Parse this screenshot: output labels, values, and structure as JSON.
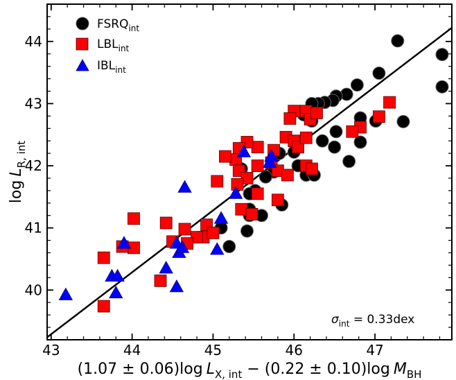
{
  "chart_data": {
    "type": "scatter",
    "xlabel": {
      "prefix": "(1.07 ± 0.06)log",
      "var1": "L",
      "sub1": "X, int",
      "mid": " − (0.22 ± 0.10)log",
      "var2": "M",
      "sub2": "BH"
    },
    "ylabel": {
      "prefix": "log",
      "var": "L",
      "sub": "R, int"
    },
    "xlim": [
      42.95,
      47.95
    ],
    "ylim": [
      39.2,
      44.6
    ],
    "xticks": [
      43,
      44,
      45,
      46,
      47
    ],
    "yticks": [
      40,
      41,
      42,
      43,
      44
    ],
    "legend_position": "top-left",
    "annotation": {
      "symbol": "σ",
      "sub": "int",
      "text": " = 0.33dex"
    },
    "fit_line": {
      "x": [
        42.95,
        47.95
      ],
      "y": [
        39.24,
        44.22
      ]
    },
    "series": [
      {
        "name": "FSRQ",
        "sub": "int",
        "marker": "circle",
        "color": "#000000",
        "points": [
          [
            47.28,
            44.01
          ],
          [
            47.83,
            43.79
          ],
          [
            47.83,
            43.27
          ],
          [
            47.05,
            43.49
          ],
          [
            47.35,
            42.71
          ],
          [
            47.01,
            42.72
          ],
          [
            46.78,
            43.3
          ],
          [
            46.65,
            43.15
          ],
          [
            46.52,
            43.12
          ],
          [
            46.48,
            43.05
          ],
          [
            46.38,
            43.02
          ],
          [
            46.3,
            43.0
          ],
          [
            46.22,
            43.0
          ],
          [
            46.12,
            42.82
          ],
          [
            46.22,
            42.72
          ],
          [
            46.35,
            42.4
          ],
          [
            46.52,
            42.55
          ],
          [
            46.5,
            42.3
          ],
          [
            46.68,
            42.07
          ],
          [
            46.82,
            42.77
          ],
          [
            46.82,
            42.38
          ],
          [
            46.0,
            42.22
          ],
          [
            45.82,
            42.2
          ],
          [
            46.05,
            42.0
          ],
          [
            46.15,
            41.85
          ],
          [
            46.25,
            41.85
          ],
          [
            45.75,
            41.9
          ],
          [
            45.65,
            41.82
          ],
          [
            45.52,
            41.6
          ],
          [
            45.45,
            41.55
          ],
          [
            45.35,
            41.95
          ],
          [
            45.6,
            41.2
          ],
          [
            45.45,
            41.3
          ],
          [
            45.45,
            41.2
          ],
          [
            45.42,
            40.95
          ],
          [
            45.85,
            41.37
          ],
          [
            45.1,
            41.0
          ],
          [
            45.2,
            40.7
          ]
        ]
      },
      {
        "name": "LBL",
        "sub": "int",
        "marker": "square",
        "color": "#ff0000",
        "points": [
          [
            47.18,
            43.02
          ],
          [
            47.05,
            42.79
          ],
          [
            46.82,
            42.62
          ],
          [
            46.72,
            42.55
          ],
          [
            46.15,
            42.88
          ],
          [
            46.2,
            42.75
          ],
          [
            46.28,
            42.85
          ],
          [
            46.0,
            42.88
          ],
          [
            45.95,
            42.76
          ],
          [
            45.9,
            42.46
          ],
          [
            46.0,
            42.4
          ],
          [
            46.05,
            42.3
          ],
          [
            46.15,
            42.45
          ],
          [
            46.15,
            42.0
          ],
          [
            46.22,
            41.95
          ],
          [
            45.75,
            42.25
          ],
          [
            45.72,
            42.05
          ],
          [
            45.8,
            41.92
          ],
          [
            45.92,
            41.85
          ],
          [
            45.55,
            42.0
          ],
          [
            45.55,
            42.3
          ],
          [
            45.42,
            42.38
          ],
          [
            45.32,
            42.28
          ],
          [
            45.28,
            42.1
          ],
          [
            45.15,
            42.15
          ],
          [
            45.32,
            41.92
          ],
          [
            45.42,
            41.8
          ],
          [
            45.55,
            41.55
          ],
          [
            45.3,
            41.7
          ],
          [
            45.35,
            41.3
          ],
          [
            45.48,
            41.22
          ],
          [
            45.05,
            41.75
          ],
          [
            44.88,
            40.85
          ],
          [
            44.92,
            41.05
          ],
          [
            45.0,
            40.92
          ],
          [
            44.8,
            40.85
          ],
          [
            44.65,
            40.98
          ],
          [
            44.68,
            40.75
          ],
          [
            44.5,
            40.78
          ],
          [
            44.42,
            41.08
          ],
          [
            44.35,
            40.15
          ],
          [
            44.02,
            41.15
          ],
          [
            44.02,
            40.68
          ],
          [
            43.88,
            40.7
          ],
          [
            43.65,
            40.52
          ],
          [
            43.65,
            39.74
          ],
          [
            45.8,
            41.45
          ]
        ]
      },
      {
        "name": "IBL",
        "sub": "int",
        "marker": "triangle",
        "color": "#0000ff",
        "points": [
          [
            43.18,
            39.92
          ],
          [
            43.75,
            40.22
          ],
          [
            43.82,
            40.22
          ],
          [
            43.8,
            39.95
          ],
          [
            43.9,
            40.75
          ],
          [
            44.42,
            40.35
          ],
          [
            44.55,
            40.05
          ],
          [
            44.55,
            40.75
          ],
          [
            44.58,
            40.6
          ],
          [
            44.62,
            40.68
          ],
          [
            44.65,
            41.65
          ],
          [
            45.05,
            40.65
          ],
          [
            45.1,
            41.15
          ],
          [
            45.28,
            41.55
          ],
          [
            45.38,
            42.22
          ],
          [
            45.7,
            42.05
          ],
          [
            45.72,
            42.15
          ]
        ]
      }
    ]
  }
}
